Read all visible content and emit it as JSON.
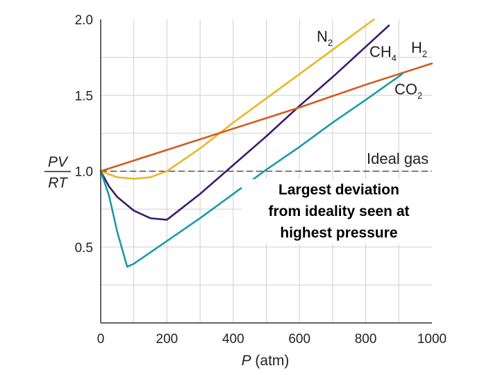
{
  "chart_data": {
    "type": "line",
    "xlabel_var": "P",
    "xlabel_unit": " (atm)",
    "ylabel_num": "PV",
    "ylabel_den": "RT",
    "xlim": [
      0,
      1000
    ],
    "ylim": [
      0,
      2.0
    ],
    "xticks": [
      0,
      200,
      400,
      600,
      800,
      1000
    ],
    "yticks": [
      0.5,
      1.0,
      1.5,
      2.0
    ],
    "ytick_labels": [
      "0.5",
      "1.0",
      "1.5",
      "2.0"
    ],
    "grid": true,
    "reference_line": {
      "label": "Ideal gas",
      "y": 1.0,
      "style": "dashed"
    },
    "series": [
      {
        "id": "N2",
        "name_main": "N",
        "name_sub": "2",
        "color": "#e8b820",
        "x": [
          0,
          50,
          100,
          150,
          200,
          300,
          400,
          500,
          600,
          700,
          800,
          825
        ],
        "y": [
          1.0,
          0.96,
          0.95,
          0.96,
          1.0,
          1.15,
          1.32,
          1.48,
          1.64,
          1.8,
          1.96,
          2.0
        ]
      },
      {
        "id": "CH4",
        "name_main": "CH",
        "name_sub": "4",
        "color": "#3a1a6e",
        "x": [
          0,
          25,
          50,
          100,
          150,
          200,
          300,
          400,
          500,
          600,
          700,
          800,
          870
        ],
        "y": [
          1.0,
          0.9,
          0.83,
          0.74,
          0.69,
          0.68,
          0.85,
          1.04,
          1.23,
          1.43,
          1.62,
          1.82,
          1.96
        ]
      },
      {
        "id": "H2",
        "name_main": "H",
        "name_sub": "2",
        "color": "#d45a1e",
        "x": [
          0,
          200,
          400,
          600,
          800,
          1000
        ],
        "y": [
          1.0,
          1.14,
          1.28,
          1.42,
          1.57,
          1.71
        ]
      },
      {
        "id": "CO2",
        "name_main": "CO",
        "name_sub": "2",
        "color": "#1a9aa8",
        "x": [
          0,
          25,
          50,
          80,
          100,
          200,
          300,
          400,
          500,
          600,
          700,
          800,
          910
        ],
        "y": [
          1.0,
          0.84,
          0.6,
          0.37,
          0.39,
          0.54,
          0.69,
          0.85,
          1.01,
          1.16,
          1.32,
          1.47,
          1.64
        ]
      }
    ]
  },
  "annotation": {
    "text": "Largest deviation\nfrom ideality seen at\nhighest pressure"
  }
}
